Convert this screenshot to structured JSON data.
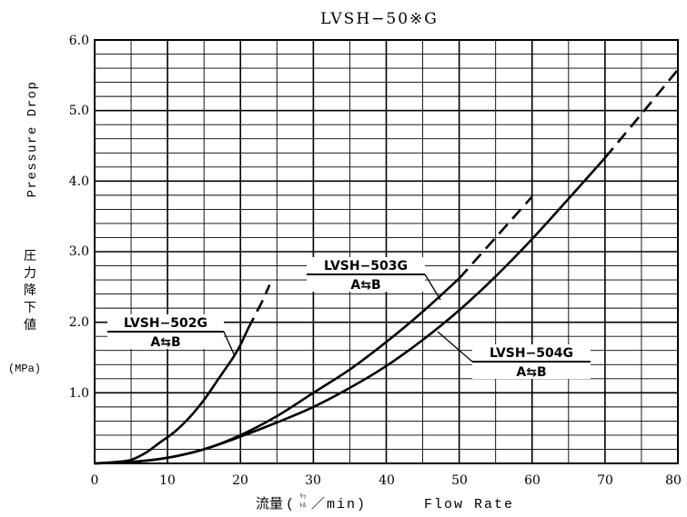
{
  "chart_data": {
    "type": "line",
    "title": "LVSH−50※G",
    "xlabel_jp": "流量",
    "xlabel_unit_top": "ﾘｯ",
    "xlabel_unit_bottom": "ﾄﾙ",
    "xlabel_unit_suffix": "／min)",
    "xlabel_en": "Flow Rate",
    "ylabel_en": "Pressure Drop",
    "ylabel_jp": [
      "圧",
      "力",
      "降",
      "下",
      "値"
    ],
    "yunit": "(MPa)",
    "xlim": [
      0,
      80
    ],
    "ylim": [
      0,
      6.0
    ],
    "x_ticks": [
      "0",
      "10",
      "20",
      "30",
      "40",
      "50",
      "60",
      "70",
      "80"
    ],
    "y_ticks": [
      "1.0",
      "2.0",
      "3.0",
      "4.0",
      "5.0",
      "6.0"
    ],
    "grid": true,
    "series": [
      {
        "name": "LVSH−502G",
        "direction": "A⇆B",
        "solid": [
          [
            0,
            0
          ],
          [
            3,
            0.02
          ],
          [
            5,
            0.05
          ],
          [
            7,
            0.15
          ],
          [
            9,
            0.3
          ],
          [
            11,
            0.45
          ],
          [
            13,
            0.65
          ],
          [
            15,
            0.9
          ],
          [
            17,
            1.2
          ],
          [
            19,
            1.5
          ],
          [
            20,
            1.68
          ],
          [
            21,
            1.9
          ]
        ],
        "dashed": [
          [
            21,
            1.9
          ],
          [
            22,
            2.1
          ],
          [
            23,
            2.3
          ],
          [
            24,
            2.53
          ]
        ]
      },
      {
        "name": "LVSH−503G",
        "direction": "A⇆B",
        "solid": [
          [
            0,
            0
          ],
          [
            5,
            0.02
          ],
          [
            10,
            0.08
          ],
          [
            15,
            0.2
          ],
          [
            20,
            0.4
          ],
          [
            25,
            0.67
          ],
          [
            30,
            1.0
          ],
          [
            35,
            1.33
          ],
          [
            40,
            1.72
          ],
          [
            45,
            2.15
          ],
          [
            50,
            2.62
          ]
        ],
        "dashed": [
          [
            50,
            2.62
          ],
          [
            55,
            3.2
          ],
          [
            60,
            3.78
          ]
        ]
      },
      {
        "name": "LVSH−504G",
        "direction": "A⇆B",
        "solid": [
          [
            0,
            0
          ],
          [
            5,
            0.02
          ],
          [
            10,
            0.08
          ],
          [
            15,
            0.2
          ],
          [
            20,
            0.38
          ],
          [
            25,
            0.58
          ],
          [
            30,
            0.8
          ],
          [
            35,
            1.07
          ],
          [
            40,
            1.38
          ],
          [
            45,
            1.75
          ],
          [
            50,
            2.17
          ],
          [
            55,
            2.65
          ],
          [
            60,
            3.18
          ],
          [
            65,
            3.75
          ],
          [
            70,
            4.33
          ]
        ],
        "dashed": [
          [
            70,
            4.33
          ],
          [
            75,
            4.95
          ],
          [
            80,
            5.58
          ]
        ]
      }
    ]
  }
}
